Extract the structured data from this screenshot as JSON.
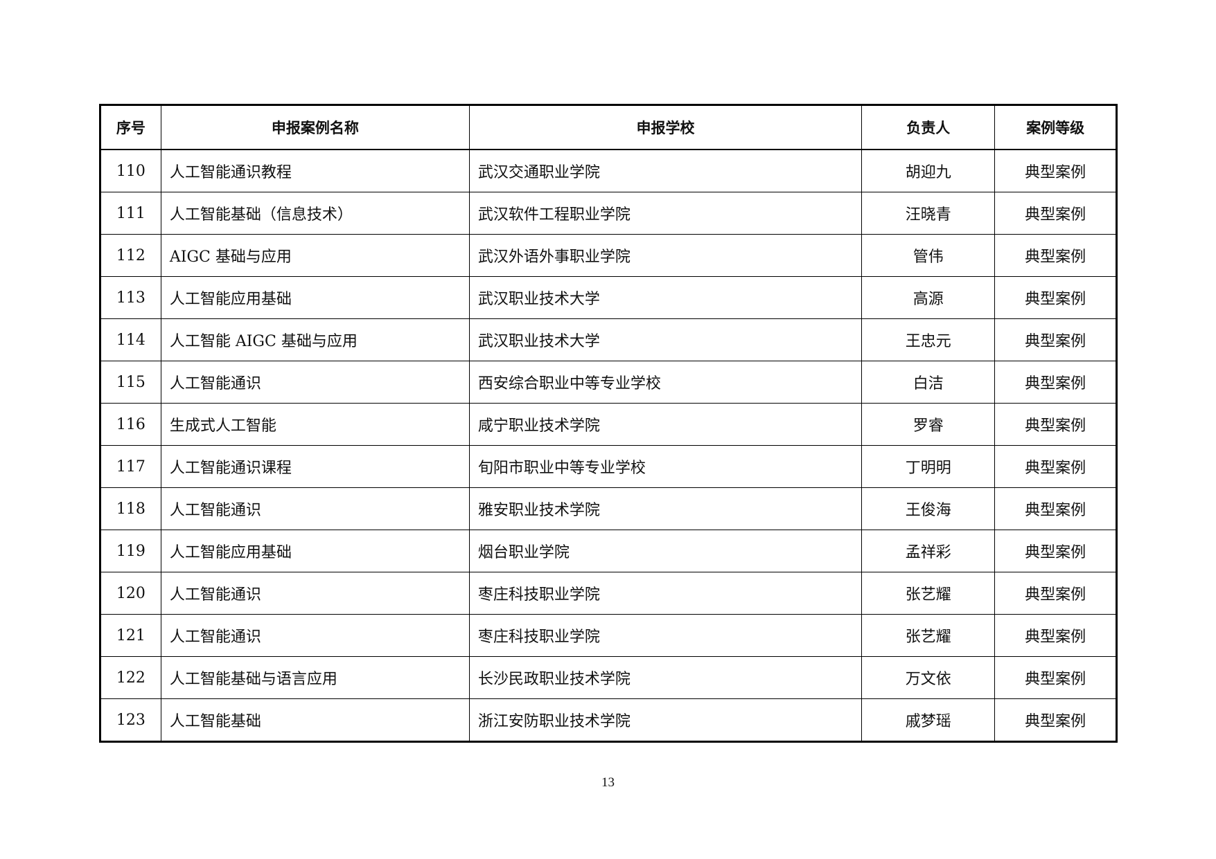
{
  "table": {
    "headers": [
      "序号",
      "申报案例名称",
      "申报学校",
      "负责人",
      "案例等级"
    ],
    "rows": [
      [
        "110",
        "人工智能通识教程",
        "武汉交通职业学院",
        "胡迎九",
        "典型案例"
      ],
      [
        "111",
        "人工智能基础（信息技术）",
        "武汉软件工程职业学院",
        "汪晓青",
        "典型案例"
      ],
      [
        "112",
        "AIGC 基础与应用",
        "武汉外语外事职业学院",
        "管伟",
        "典型案例"
      ],
      [
        "113",
        "人工智能应用基础",
        "武汉职业技术大学",
        "高源",
        "典型案例"
      ],
      [
        "114",
        "人工智能 AIGC 基础与应用",
        "武汉职业技术大学",
        "王忠元",
        "典型案例"
      ],
      [
        "115",
        "人工智能通识",
        "西安综合职业中等专业学校",
        "白洁",
        "典型案例"
      ],
      [
        "116",
        "生成式人工智能",
        "咸宁职业技术学院",
        "罗睿",
        "典型案例"
      ],
      [
        "117",
        "人工智能通识课程",
        "旬阳市职业中等专业学校",
        "丁明明",
        "典型案例"
      ],
      [
        "118",
        "人工智能通识",
        "雅安职业技术学院",
        "王俊海",
        "典型案例"
      ],
      [
        "119",
        "人工智能应用基础",
        "烟台职业学院",
        "孟祥彩",
        "典型案例"
      ],
      [
        "120",
        "人工智能通识",
        "枣庄科技职业学院",
        "张艺耀",
        "典型案例"
      ],
      [
        "121",
        "人工智能通识",
        "枣庄科技职业学院",
        "张艺耀",
        "典型案例"
      ],
      [
        "122",
        "人工智能基础与语言应用",
        "长沙民政职业技术学院",
        "万文依",
        "典型案例"
      ],
      [
        "123",
        "人工智能基础",
        "浙江安防职业技术学院",
        "戚梦瑶",
        "典型案例"
      ]
    ]
  },
  "page_number": "13"
}
